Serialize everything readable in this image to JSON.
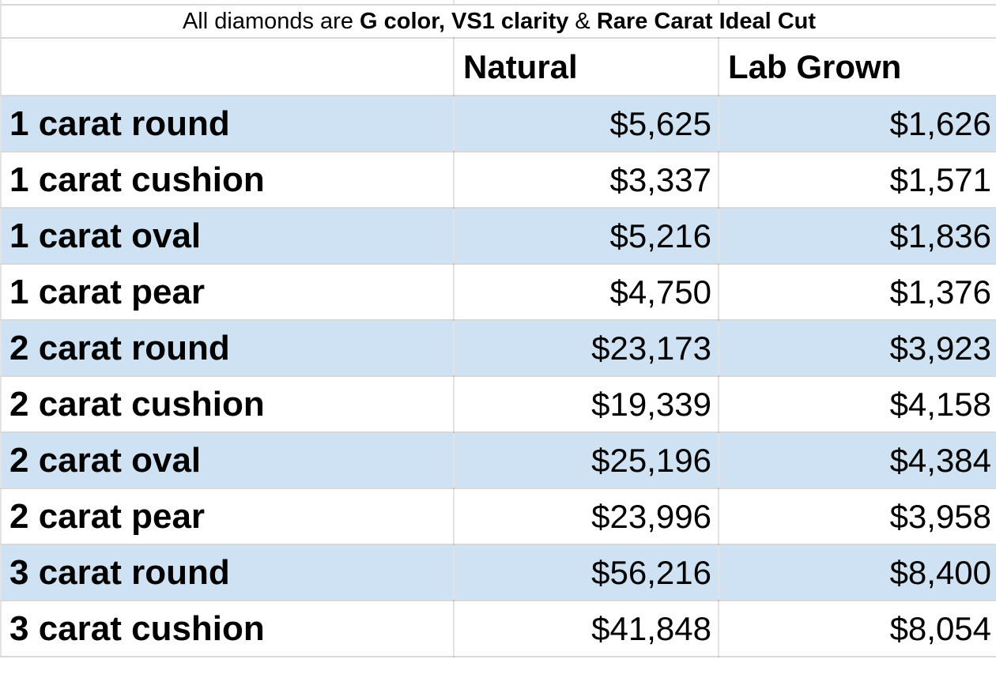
{
  "title": {
    "part1": "All diamonds are ",
    "part2_bold": "G color, VS1 clarity",
    "part3": " & ",
    "part4_bold": "Rare Carat Ideal Cut"
  },
  "chart_data": {
    "type": "table",
    "title": "All diamonds are G color, VS1 clarity & Rare Carat Ideal Cut",
    "columns": [
      "",
      "Natural",
      "Lab Grown"
    ],
    "rows": [
      {
        "label": "1 carat round",
        "natural": "$5,625",
        "lab_grown": "$1,626"
      },
      {
        "label": "1 carat cushion",
        "natural": "$3,337",
        "lab_grown": "$1,571"
      },
      {
        "label": "1 carat oval",
        "natural": "$5,216",
        "lab_grown": "$1,836"
      },
      {
        "label": "1 carat pear",
        "natural": "$4,750",
        "lab_grown": "$1,376"
      },
      {
        "label": "2 carat round",
        "natural": "$23,173",
        "lab_grown": "$3,923"
      },
      {
        "label": "2 carat cushion",
        "natural": "$19,339",
        "lab_grown": "$4,158"
      },
      {
        "label": "2 carat oval",
        "natural": "$25,196",
        "lab_grown": "$4,384"
      },
      {
        "label": "2 carat pear",
        "natural": "$23,996",
        "lab_grown": "$3,958"
      },
      {
        "label": "3 carat round",
        "natural": "$56,216",
        "lab_grown": "$8,400"
      },
      {
        "label": "3 carat cushion",
        "natural": "$41,848",
        "lab_grown": "$8,054"
      }
    ],
    "values_numeric": {
      "natural": [
        5625,
        3337,
        5216,
        4750,
        23173,
        19339,
        25196,
        23996,
        56216,
        41848
      ],
      "lab_grown": [
        1626,
        1571,
        1836,
        1376,
        3923,
        4158,
        4384,
        3958,
        8400,
        8054
      ]
    }
  },
  "colors": {
    "row_highlight": "#cfe2f3",
    "text": "#000000",
    "background": "#ffffff"
  }
}
